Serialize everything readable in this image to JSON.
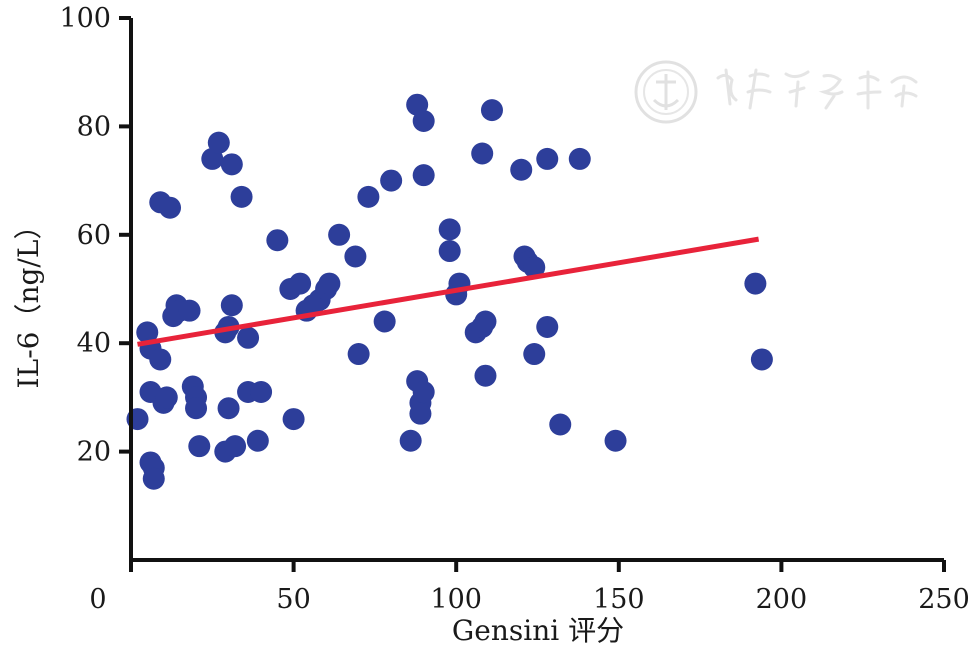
{
  "chart_data": {
    "type": "scatter",
    "title": "",
    "xlabel": "Gensini 评分",
    "ylabel": "IL-6（ng/L）",
    "xlim": [
      0,
      250
    ],
    "ylim": [
      0,
      100
    ],
    "x_ticks": [
      0,
      50,
      100,
      150,
      200,
      250
    ],
    "x_tick_labels": [
      "0",
      "50",
      "100",
      "150",
      "200",
      "250"
    ],
    "y_ticks": [
      20,
      40,
      60,
      80,
      100
    ],
    "y_tick_labels": [
      "20",
      "40",
      "60",
      "80",
      "100"
    ],
    "grid": false,
    "colors": {
      "points": "#2d3e9a",
      "trendline": "#e8233a",
      "axes": "#111111"
    },
    "points": [
      {
        "x": 2,
        "y": 26
      },
      {
        "x": 5,
        "y": 42
      },
      {
        "x": 6,
        "y": 39
      },
      {
        "x": 6,
        "y": 31
      },
      {
        "x": 6,
        "y": 18
      },
      {
        "x": 7,
        "y": 17
      },
      {
        "x": 7,
        "y": 15
      },
      {
        "x": 9,
        "y": 37
      },
      {
        "x": 9,
        "y": 66
      },
      {
        "x": 10,
        "y": 29
      },
      {
        "x": 11,
        "y": 30
      },
      {
        "x": 12,
        "y": 65
      },
      {
        "x": 13,
        "y": 45
      },
      {
        "x": 14,
        "y": 47
      },
      {
        "x": 15,
        "y": 46
      },
      {
        "x": 18,
        "y": 46
      },
      {
        "x": 19,
        "y": 32
      },
      {
        "x": 20,
        "y": 30
      },
      {
        "x": 20,
        "y": 28
      },
      {
        "x": 21,
        "y": 21
      },
      {
        "x": 25,
        "y": 74
      },
      {
        "x": 27,
        "y": 77
      },
      {
        "x": 29,
        "y": 42
      },
      {
        "x": 29,
        "y": 20
      },
      {
        "x": 30,
        "y": 43
      },
      {
        "x": 30,
        "y": 28
      },
      {
        "x": 31,
        "y": 47
      },
      {
        "x": 31,
        "y": 73
      },
      {
        "x": 32,
        "y": 21
      },
      {
        "x": 34,
        "y": 67
      },
      {
        "x": 36,
        "y": 41
      },
      {
        "x": 36,
        "y": 31
      },
      {
        "x": 39,
        "y": 22
      },
      {
        "x": 40,
        "y": 31
      },
      {
        "x": 45,
        "y": 59
      },
      {
        "x": 49,
        "y": 50
      },
      {
        "x": 50,
        "y": 26
      },
      {
        "x": 52,
        "y": 51
      },
      {
        "x": 54,
        "y": 46
      },
      {
        "x": 56,
        "y": 47
      },
      {
        "x": 58,
        "y": 48
      },
      {
        "x": 60,
        "y": 50
      },
      {
        "x": 61,
        "y": 51
      },
      {
        "x": 64,
        "y": 60
      },
      {
        "x": 69,
        "y": 56
      },
      {
        "x": 70,
        "y": 38
      },
      {
        "x": 73,
        "y": 67
      },
      {
        "x": 78,
        "y": 44
      },
      {
        "x": 80,
        "y": 70
      },
      {
        "x": 86,
        "y": 22
      },
      {
        "x": 88,
        "y": 84
      },
      {
        "x": 88,
        "y": 33
      },
      {
        "x": 89,
        "y": 29
      },
      {
        "x": 89,
        "y": 27
      },
      {
        "x": 90,
        "y": 81
      },
      {
        "x": 90,
        "y": 31
      },
      {
        "x": 90,
        "y": 71
      },
      {
        "x": 98,
        "y": 61
      },
      {
        "x": 98,
        "y": 57
      },
      {
        "x": 100,
        "y": 49
      },
      {
        "x": 101,
        "y": 51
      },
      {
        "x": 106,
        "y": 42
      },
      {
        "x": 108,
        "y": 75
      },
      {
        "x": 108,
        "y": 43
      },
      {
        "x": 109,
        "y": 44
      },
      {
        "x": 109,
        "y": 34
      },
      {
        "x": 111,
        "y": 83
      },
      {
        "x": 120,
        "y": 72
      },
      {
        "x": 121,
        "y": 56
      },
      {
        "x": 122,
        "y": 55
      },
      {
        "x": 124,
        "y": 54
      },
      {
        "x": 124,
        "y": 38
      },
      {
        "x": 128,
        "y": 74
      },
      {
        "x": 128,
        "y": 43
      },
      {
        "x": 132,
        "y": 25
      },
      {
        "x": 138,
        "y": 74
      },
      {
        "x": 149,
        "y": 22
      },
      {
        "x": 192,
        "y": 51
      },
      {
        "x": 194,
        "y": 37
      }
    ],
    "trendline": {
      "x": [
        2,
        193
      ],
      "y": [
        39.8,
        59.2
      ]
    }
  }
}
